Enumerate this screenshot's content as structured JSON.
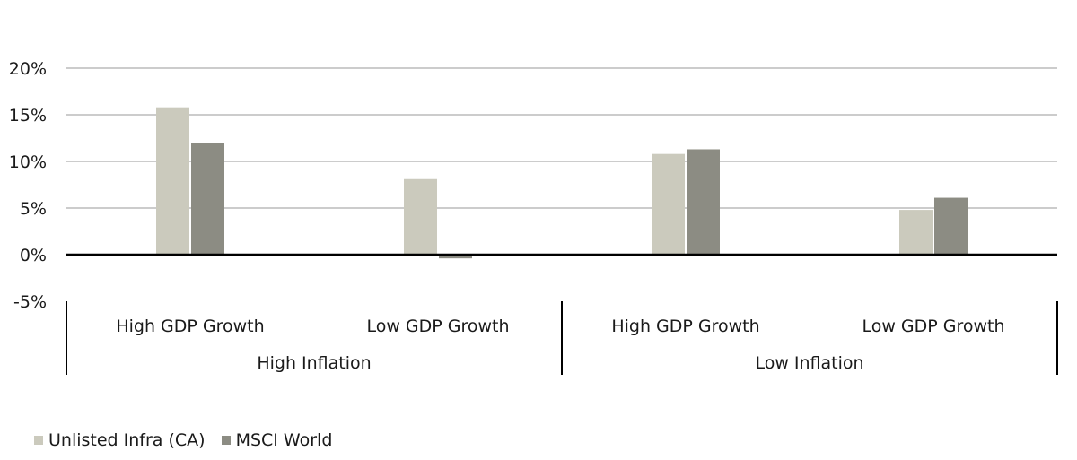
{
  "chart_data": {
    "type": "bar",
    "groups": [
      {
        "label": "High Inflation",
        "categories": [
          "High GDP Growth",
          "Low GDP Growth"
        ]
      },
      {
        "label": "Low Inflation",
        "categories": [
          "High GDP Growth",
          "Low GDP Growth"
        ]
      }
    ],
    "categories": [
      "High GDP Growth",
      "Low GDP Growth",
      "High GDP Growth",
      "Low GDP Growth"
    ],
    "series": [
      {
        "name": "Unlisted Infra (CA)",
        "color": "#cbcabd",
        "values": [
          15.8,
          8.1,
          10.8,
          4.8
        ]
      },
      {
        "name": "MSCI World",
        "color": "#8c8c83",
        "values": [
          12.0,
          -0.4,
          11.3,
          6.1
        ]
      }
    ],
    "ylim": [
      -5,
      20
    ],
    "yticks": [
      20,
      15,
      10,
      5,
      0,
      -5
    ],
    "ytick_labels": [
      "20%",
      "15%",
      "10%",
      "5%",
      "0%",
      "-5%"
    ],
    "grid": true,
    "legend_position": "bottom-left"
  }
}
